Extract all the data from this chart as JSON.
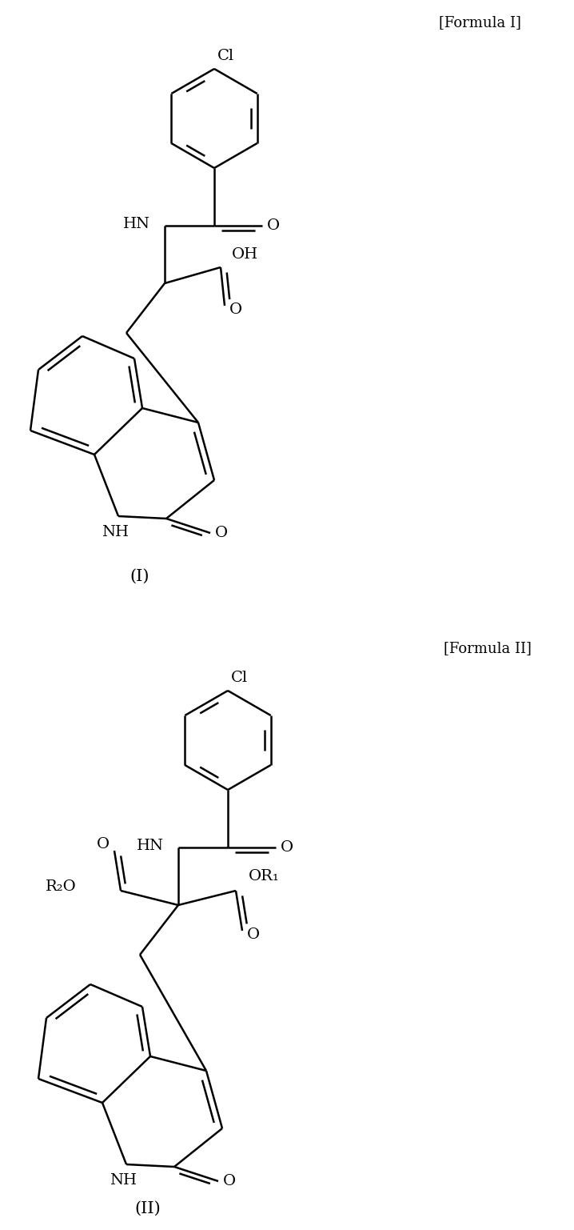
{
  "bg_color": "#ffffff",
  "line_color": "#000000",
  "line_width": 1.8,
  "font_size": 14,
  "formula1_label": "[Formula I]",
  "formula2_label": "[Formula II]",
  "label1": "(I)",
  "label2": "(II)"
}
